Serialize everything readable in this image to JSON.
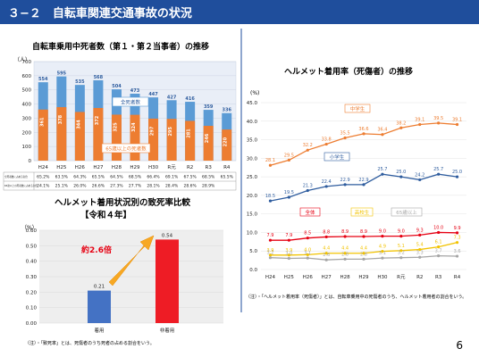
{
  "header": {
    "title": "３−２　自転車関連交通事故の状況"
  },
  "page_number": "6",
  "chart_data": [
    {
      "type": "bar",
      "title": "自転車乗用中死者数（第１・第２当事者）の推移",
      "ylabel": "（人）",
      "ylim": [
        0,
        700
      ],
      "yticks": [
        0,
        100,
        200,
        300,
        400,
        500,
        600,
        700
      ],
      "categories": [
        "H24",
        "H25",
        "H26",
        "H27",
        "H28",
        "H29",
        "H30",
        "R元",
        "R2",
        "R3",
        "R4"
      ],
      "series": [
        {
          "name": "全死者数",
          "values": [
            554,
            595,
            535,
            568,
            504,
            473,
            447,
            427,
            416,
            359,
            336
          ],
          "color": "#5b9bd5"
        },
        {
          "name": "65歳以上の死者数",
          "values": [
            361,
            378,
            344,
            372,
            325,
            324,
            297,
            295,
            281,
            246,
            220
          ],
          "color": "#ed7d31"
        }
      ],
      "table": {
        "row_labels": [
          "全死者数に占める割合",
          "65歳以上の死者数に占める割合"
        ],
        "rows": [
          [
            "65.2%",
            "63.5%",
            "64.3%",
            "65.5%",
            "64.5%",
            "68.5%",
            "66.4%",
            "69.1%",
            "67.5%",
            "68.5%",
            "65.5%"
          ],
          [
            "24.1%",
            "25.1%",
            "26.0%",
            "26.6%",
            "27.3%",
            "27.7%",
            "28.1%",
            "28.4%",
            "28.6%",
            "28.9%",
            ""
          ]
        ]
      }
    },
    {
      "type": "bar",
      "title": "ヘルメット着用状況別の致死率比較",
      "subtitle": "【令和４年】",
      "ylabel": "（%）",
      "ylim": [
        0,
        0.6
      ],
      "yticks": [
        "0.00",
        "0.10",
        "0.20",
        "0.30",
        "0.40",
        "0.50",
        "0.60"
      ],
      "categories": [
        "着用",
        "非着用"
      ],
      "values": [
        0.21,
        0.54
      ],
      "value_labels": [
        "0.21",
        "0.54"
      ],
      "colors": [
        "#4472c4",
        "#ee1c25"
      ],
      "annotation": "約2.6倍"
    },
    {
      "type": "line",
      "title": "ヘルメット着用率（死傷者）の推移",
      "ylabel": "(%)",
      "ylim": [
        0,
        45
      ],
      "yticks": [
        "0.0",
        "5.0",
        "10.0",
        "15.0",
        "20.0",
        "25.0",
        "30.0",
        "35.0",
        "40.0",
        "45.0"
      ],
      "categories": [
        "H24",
        "H25",
        "H26",
        "H27",
        "H28",
        "H29",
        "H30",
        "R元",
        "R2",
        "R3",
        "R4"
      ],
      "series": [
        {
          "name": "中学生",
          "values": [
            28.1,
            29.5,
            32.2,
            33.8,
            35.5,
            36.6,
            36.4,
            38.2,
            39.1,
            39.5,
            39.1
          ],
          "color": "#ed7d31"
        },
        {
          "name": "小学生",
          "values": [
            18.5,
            19.5,
            21.3,
            22.4,
            22.9,
            22.9,
            25.7,
            25.0,
            24.2,
            25.7,
            25.0
          ],
          "color": "#2e5c9e"
        },
        {
          "name": "全体",
          "values": [
            7.9,
            7.9,
            8.5,
            8.8,
            8.9,
            8.9,
            9.0,
            9.0,
            9.3,
            10.0,
            9.9
          ],
          "color": "#e60012"
        },
        {
          "name": "高校生",
          "values": [
            3.9,
            3.9,
            4.0,
            4.4,
            4.4,
            4.4,
            4.9,
            5.1,
            5.4,
            6.1,
            7.3
          ],
          "value_labels": [
            "3.9",
            "3.9",
            "4.0",
            "4.4",
            "4.4",
            "4.4",
            "4.9",
            "5.1",
            "5.4",
            "6.1",
            "7.3"
          ],
          "color": "#f2c300"
        },
        {
          "name": "65歳以上",
          "values": [
            3.2,
            3.0,
            3.1,
            2.6,
            2.8,
            2.8,
            3.1,
            3.2,
            3.3,
            3.7,
            3.6
          ],
          "color": "#a6a6a6"
        }
      ]
    }
  ],
  "notes": {
    "fatality": "（注）・「致死率」とは、死傷者のうち死者の占める割合をいう。",
    "helmet": "（注）・「ヘルメット着用率（死傷者）」とは、自転車乗用中の死傷者のうち、ヘルメット着用者の割合をいう。"
  }
}
